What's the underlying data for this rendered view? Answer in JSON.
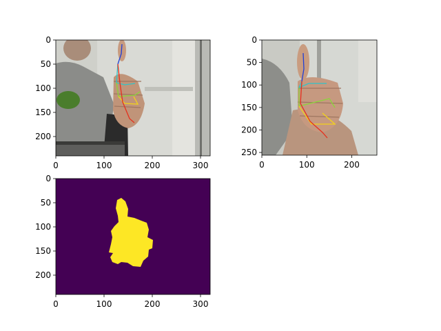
{
  "colors": {
    "mask_background": "#440154",
    "mask_foreground": "#fde725",
    "photo_wall": "#d7d9d4",
    "photo_shirt": "#8c8d8a",
    "skin": "#c49a7f",
    "skeleton_thumb": "#1f3fd6",
    "skeleton_index": "#2ec4c9",
    "skeleton_middle": "#8ad63a",
    "skeleton_ring": "#f2d21b",
    "skeleton_pinky": "#e5301d"
  },
  "chart_data": [
    {
      "type": "image",
      "content": "webcam frame with hand keypoint skeleton overlay",
      "x_ticks": [
        "0",
        "100",
        "200",
        "300"
      ],
      "y_ticks": [
        "0",
        "50",
        "100",
        "150",
        "200"
      ],
      "xlim": [
        0,
        320
      ],
      "ylim": [
        240,
        0
      ]
    },
    {
      "type": "image",
      "content": "hand crop with keypoint skeleton overlay",
      "x_ticks": [
        "0",
        "100",
        "200"
      ],
      "y_ticks": [
        "0",
        "50",
        "100",
        "150",
        "200",
        "250"
      ],
      "xlim": [
        0,
        256
      ],
      "ylim": [
        256,
        0
      ]
    },
    {
      "type": "heatmap",
      "content": "binary hand segmentation mask",
      "colormap": "viridis",
      "x_ticks": [
        "0",
        "100",
        "200",
        "300"
      ],
      "y_ticks": [
        "0",
        "50",
        "100",
        "150",
        "200"
      ],
      "xlim": [
        0,
        320
      ],
      "ylim": [
        240,
        0
      ]
    }
  ]
}
